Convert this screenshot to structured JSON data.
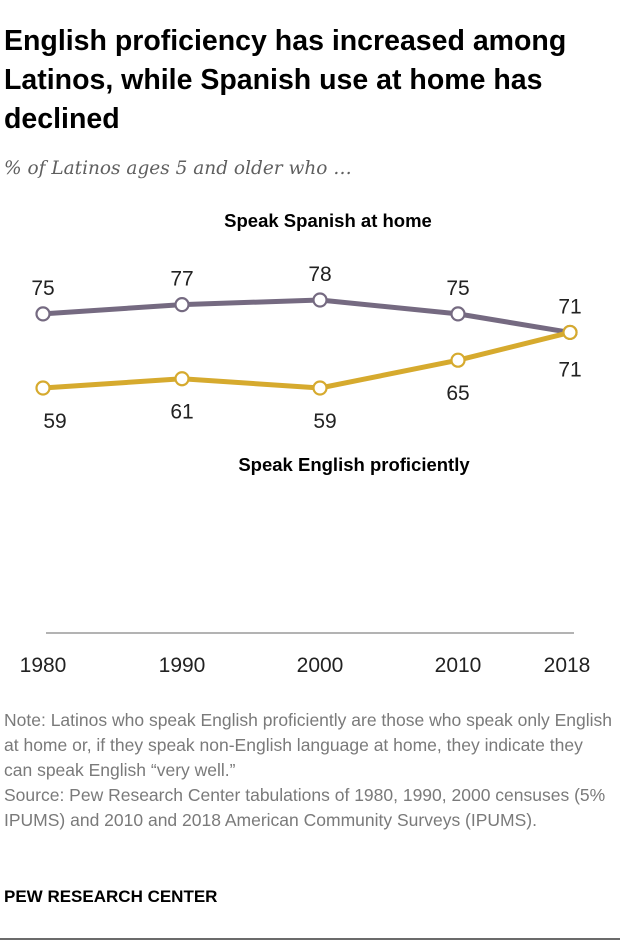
{
  "title": "English proficiency has increased among Latinos, while Spanish use at home has declined",
  "subtitle": "% of Latinos ages 5 and older who …",
  "chart_data": {
    "type": "line",
    "x": [
      1980,
      1990,
      2000,
      2010,
      2018
    ],
    "x_tick_labels": [
      "1980",
      "1990",
      "2000",
      "2010",
      "2018"
    ],
    "series": [
      {
        "name": "Speak Spanish at home",
        "values": [
          75,
          77,
          78,
          75,
          71
        ],
        "color": "#756a81",
        "label_position": "above"
      },
      {
        "name": "Speak English proficiently",
        "values": [
          59,
          61,
          59,
          65,
          71
        ],
        "color": "#d6aa2e",
        "label_position": "below"
      }
    ],
    "legend": "direct labels",
    "grid": false,
    "ylim": [
      40,
      85
    ]
  },
  "note": "Note: Latinos who speak English proficiently are those who speak only English at home or, if they speak non-English language at home, they indicate they can speak English “very well.”",
  "source": "Source: Pew Research Center tabulations of 1980, 1990, 2000 censuses (5% IPUMS) and 2010 and 2018 American Community Surveys (IPUMS).",
  "brand": "PEW RESEARCH CENTER"
}
